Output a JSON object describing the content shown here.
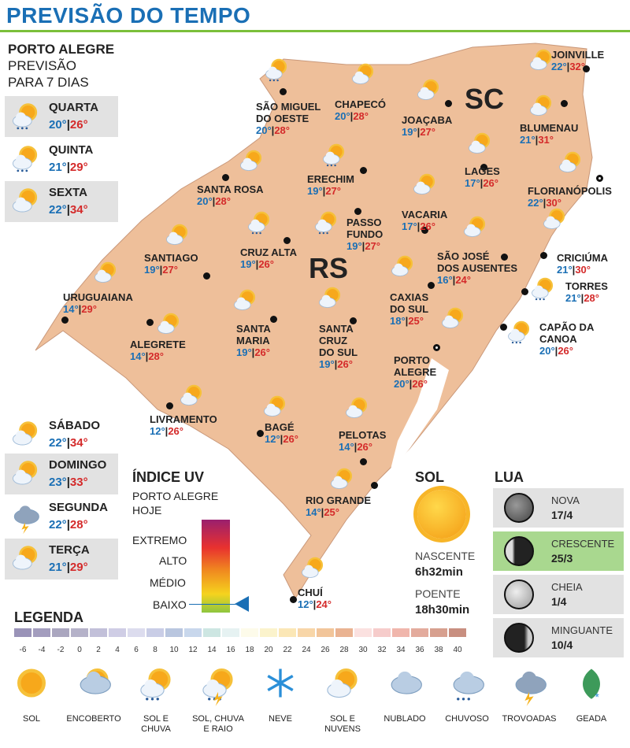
{
  "title": "PREVISÃO DO TEMPO",
  "sidebar": {
    "city": "PORTO ALEGRE",
    "sub1": "PREVISÃO",
    "sub2": "PARA 7 DIAS",
    "days": [
      {
        "name": "QUARTA",
        "lo": "20°",
        "hi": "26°",
        "icon": "sun-cloud-rain"
      },
      {
        "name": "QUINTA",
        "lo": "21°",
        "hi": "29°",
        "icon": "sun-cloud-rain"
      },
      {
        "name": "SEXTA",
        "lo": "22°",
        "hi": "34°",
        "icon": "sun-cloud"
      },
      {
        "name": "SÁBADO",
        "lo": "22°",
        "hi": "34°",
        "icon": "sun-cloud"
      },
      {
        "name": "DOMINGO",
        "lo": "23°",
        "hi": "33°",
        "icon": "sun-cloud"
      },
      {
        "name": "SEGUNDA",
        "lo": "22°",
        "hi": "28°",
        "icon": "storm"
      },
      {
        "name": "TERÇA",
        "lo": "21°",
        "hi": "29°",
        "icon": "sun-cloud"
      }
    ]
  },
  "states": {
    "sc": "SC",
    "rs": "RS"
  },
  "cities": [
    {
      "name": "SÃO MIGUEL\nDO OESTE",
      "lo": "20°",
      "hi": "28°",
      "icon": "sun-cloud-rain"
    },
    {
      "name": "CHAPECÓ",
      "lo": "20°",
      "hi": "28°",
      "icon": "sun-cloud"
    },
    {
      "name": "JOAÇABA",
      "lo": "19°",
      "hi": "27°",
      "icon": "sun-cloud"
    },
    {
      "name": "JOINVILLE",
      "lo": "22°",
      "hi": "32°",
      "icon": "sun-cloud"
    },
    {
      "name": "BLUMENAU",
      "lo": "21°",
      "hi": "31°",
      "icon": "sun-cloud"
    },
    {
      "name": "LAGES",
      "lo": "17°",
      "hi": "26°",
      "icon": "sun-cloud"
    },
    {
      "name": "FLORIANÓPOLIS",
      "lo": "22°",
      "hi": "30°",
      "icon": "sun-cloud"
    },
    {
      "name": "SANTA ROSA",
      "lo": "20°",
      "hi": "28°",
      "icon": "sun-cloud"
    },
    {
      "name": "ERECHIM",
      "lo": "19°",
      "hi": "27°",
      "icon": "sun-cloud-rain"
    },
    {
      "name": "VACARIA",
      "lo": "17°",
      "hi": "26°",
      "icon": "sun-cloud"
    },
    {
      "name": "PASSO\nFUNDO",
      "lo": "19°",
      "hi": "27°",
      "icon": "sun-cloud-rain"
    },
    {
      "name": "CRUZ ALTA",
      "lo": "19°",
      "hi": "26°",
      "icon": "sun-cloud-rain"
    },
    {
      "name": "SANTIAGO",
      "lo": "19°",
      "hi": "27°",
      "icon": "sun-cloud"
    },
    {
      "name": "SÃO JOSÉ\nDOS AUSENTES",
      "lo": "16°",
      "hi": "24°",
      "icon": "sun-cloud"
    },
    {
      "name": "CRICIÚMA",
      "lo": "21°",
      "hi": "30°",
      "icon": "sun-cloud"
    },
    {
      "name": "URUGUAIANA",
      "lo": "14°",
      "hi": "29°",
      "icon": "sun-cloud"
    },
    {
      "name": "CAXIAS\nDO SUL",
      "lo": "18°",
      "hi": "25°",
      "icon": "sun-cloud"
    },
    {
      "name": "TORRES",
      "lo": "21°",
      "hi": "28°",
      "icon": "sun-cloud-rain"
    },
    {
      "name": "ALEGRETE",
      "lo": "14°",
      "hi": "28°",
      "icon": "sun-cloud"
    },
    {
      "name": "SANTA\nMARIA",
      "lo": "19°",
      "hi": "26°",
      "icon": "sun-cloud"
    },
    {
      "name": "SANTA\nCRUZ\nDO SUL",
      "lo": "19°",
      "hi": "26°",
      "icon": "sun-cloud"
    },
    {
      "name": "CAPÃO DA\nCANOA",
      "lo": "20°",
      "hi": "26°",
      "icon": "sun-cloud-rain"
    },
    {
      "name": "PORTO\nALEGRE",
      "lo": "20°",
      "hi": "26°",
      "icon": "sun-cloud"
    },
    {
      "name": "LIVRAMENTO",
      "lo": "12°",
      "hi": "26°",
      "icon": "sun-cloud"
    },
    {
      "name": "BAGÉ",
      "lo": "12°",
      "hi": "26°",
      "icon": "sun-cloud"
    },
    {
      "name": "PELOTAS",
      "lo": "14°",
      "hi": "26°",
      "icon": "sun-cloud"
    },
    {
      "name": "RIO GRANDE",
      "lo": "14°",
      "hi": "25°",
      "icon": "sun-cloud"
    },
    {
      "name": "CHUÍ",
      "lo": "12°",
      "hi": "24°",
      "icon": "sun-cloud"
    }
  ],
  "uv": {
    "title": "ÍNDICE UV",
    "sub1": "PORTO ALEGRE",
    "sub2": "HOJE",
    "levels": [
      "EXTREMO",
      "ALTO",
      "MÉDIO",
      "BAIXO"
    ],
    "current": "BAIXO"
  },
  "sun": {
    "title": "SOL",
    "rise_label": "NASCENTE",
    "rise": "6h32min",
    "set_label": "POENTE",
    "set": "18h30min"
  },
  "moon": {
    "title": "LUA",
    "phases": [
      {
        "name": "NOVA",
        "date": "17/4"
      },
      {
        "name": "CRESCENTE",
        "date": "25/3",
        "active": true
      },
      {
        "name": "CHEIA",
        "date": "1/4"
      },
      {
        "name": "MINGUANTE",
        "date": "10/4"
      }
    ]
  },
  "legend": {
    "title": "LEGENDA",
    "scale": [
      "-6",
      "-4",
      "-2",
      "0",
      "2",
      "4",
      "6",
      "8",
      "10",
      "12",
      "14",
      "16",
      "18",
      "20",
      "22",
      "24",
      "26",
      "28",
      "30",
      "32",
      "34",
      "36",
      "38",
      "40"
    ],
    "scale_colors": [
      "#9a93b8",
      "#a39dbe",
      "#aaa6bf",
      "#b5b2c9",
      "#c2c0d9",
      "#cfcde5",
      "#dcdcee",
      "#c9cde6",
      "#b9c6df",
      "#c8d7ec",
      "#cde6e2",
      "#e6f2f2",
      "#fdfbea",
      "#fbf3cc",
      "#fbe7b6",
      "#f8d6a8",
      "#f2c59a",
      "#eab392",
      "#fbe1e0",
      "#f6cccb",
      "#f0b6ac",
      "#e3ab9d",
      "#d7a08f",
      "#c88f80"
    ],
    "icons": [
      {
        "label": "SOL",
        "icon": "sun"
      },
      {
        "label": "ENCOBERTO",
        "icon": "overcast"
      },
      {
        "label": "SOL E\nCHUVA",
        "icon": "sun-cloud-rain"
      },
      {
        "label": "SOL, CHUVA\nE RAIO",
        "icon": "sun-rain-lightning"
      },
      {
        "label": "NEVE",
        "icon": "snow"
      },
      {
        "label": "SOL E\nNUVENS",
        "icon": "sun-cloud"
      },
      {
        "label": "NUBLADO",
        "icon": "cloudy"
      },
      {
        "label": "CHUVOSO",
        "icon": "rainy"
      },
      {
        "label": "TROVOADAS",
        "icon": "storm"
      },
      {
        "label": "GEADA",
        "icon": "frost"
      }
    ]
  }
}
